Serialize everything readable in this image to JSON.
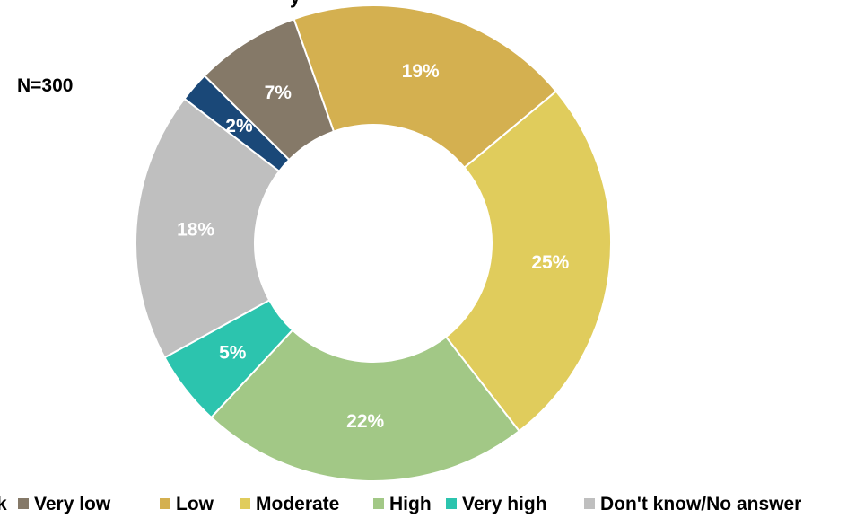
{
  "n_label": "N=300",
  "top_fragment": "y",
  "chart_data": {
    "type": "pie",
    "title": "",
    "donut": true,
    "slices": [
      {
        "name": "Low",
        "value": 19,
        "label": "19%",
        "color": "#D4B050"
      },
      {
        "name": "Moderate",
        "value": 25,
        "label": "25%",
        "color": "#E0CC5C"
      },
      {
        "name": "High",
        "value": 22,
        "label": "22%",
        "color": "#A2C886"
      },
      {
        "name": "Very high",
        "value": 5,
        "label": "5%",
        "color": "#2CC4AE"
      },
      {
        "name": "Don't know/No answer",
        "value": 18,
        "label": "18%",
        "color": "#BFBFBF"
      },
      {
        "name": "Very low/No risk",
        "value": 2,
        "label": "2%",
        "color": "#1A4878"
      },
      {
        "name": "Very low",
        "value": 7,
        "label": "7%",
        "color": "#857968"
      }
    ],
    "legend_position": "bottom",
    "legend": [
      {
        "label": "k",
        "color": "#1A4878",
        "swatch": false
      },
      {
        "label": "Very low",
        "color": "#857968",
        "swatch": true
      },
      {
        "label": "Low",
        "color": "#D4B050",
        "swatch": true
      },
      {
        "label": "Moderate",
        "color": "#E0CC5C",
        "swatch": true
      },
      {
        "label": "High",
        "color": "#A2C886",
        "swatch": true
      },
      {
        "label": "Very high",
        "color": "#2CC4AE",
        "swatch": true
      },
      {
        "label": "Don't know/No answer",
        "color": "#BFBFBF",
        "swatch": true
      }
    ]
  }
}
